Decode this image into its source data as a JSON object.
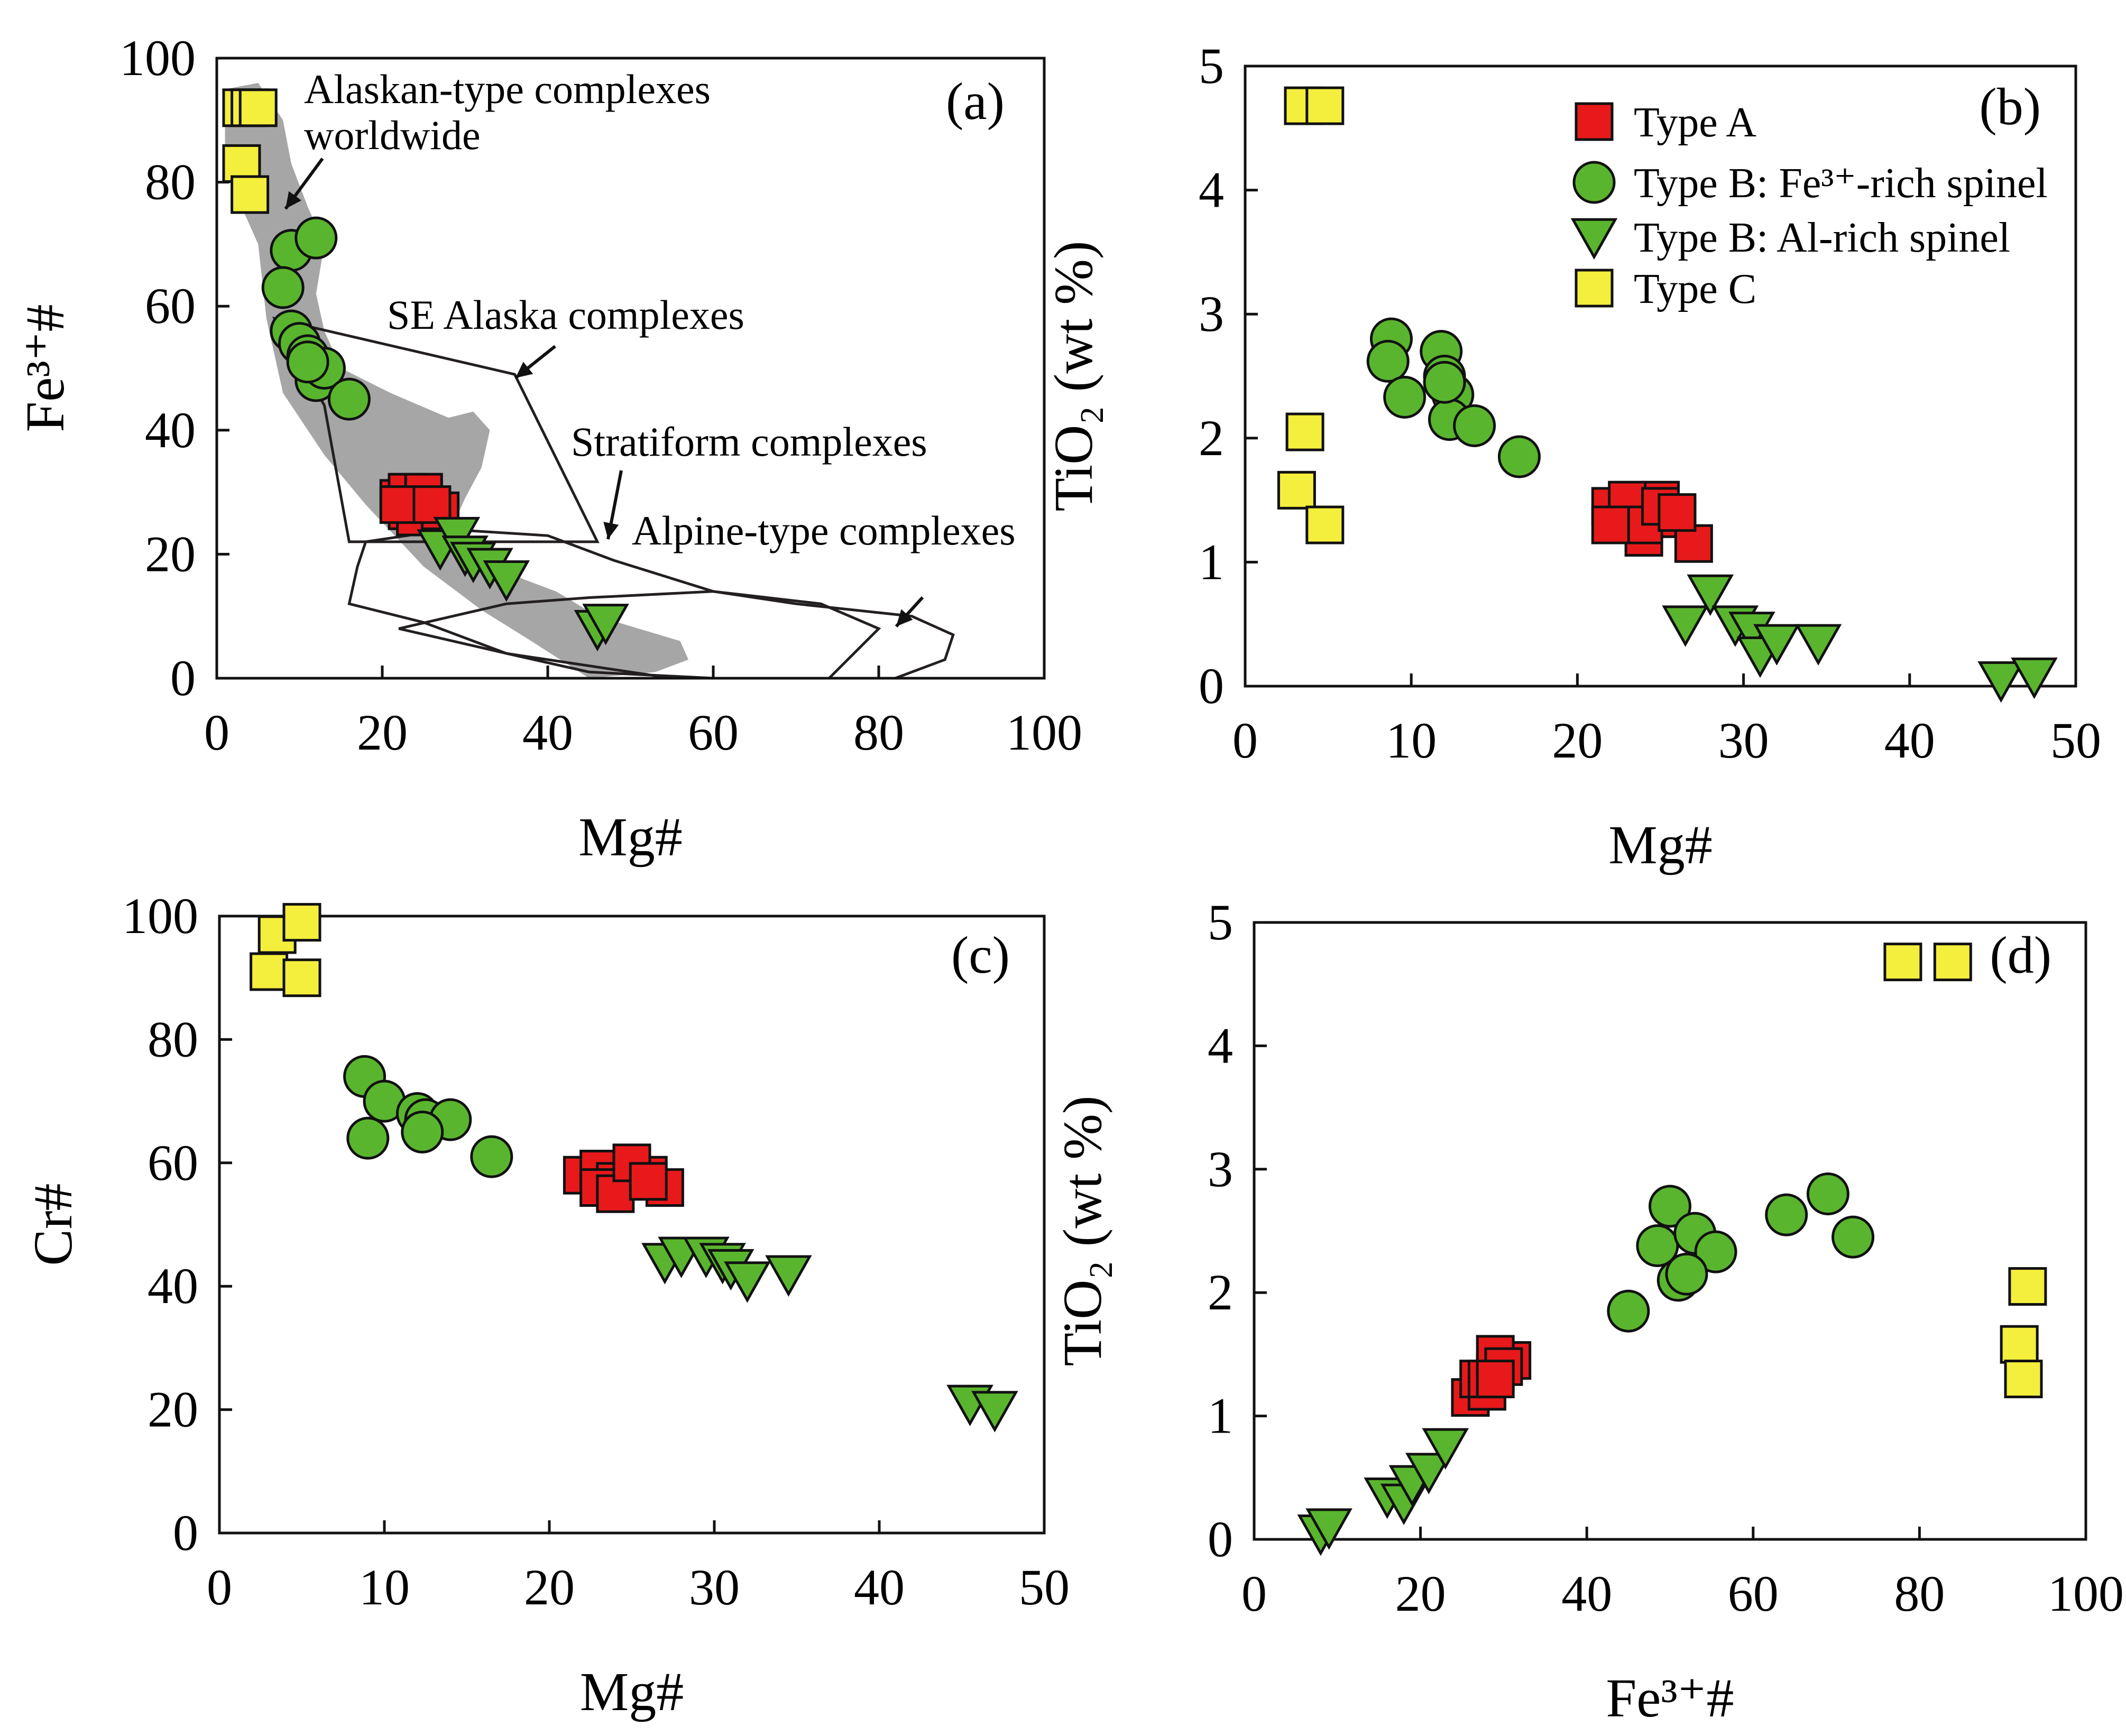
{
  "figure": {
    "description": ""
  },
  "colors": {
    "type_a": "#e8191b",
    "type_b": "#5ab52e",
    "type_c": "#f4ee3c",
    "field_gray": "#a6a6a6",
    "outline": "#231f20"
  },
  "legend": {
    "type_a": "Type A",
    "type_b_fe": "Type B: Fe³⁺-rich spinel",
    "type_b_al": "Type B: Al-rich spinel",
    "type_c": "Type C"
  },
  "chart_data": [
    {
      "id": "a",
      "type": "scatter",
      "panel_label": "(a)",
      "xlabel": "Mg#",
      "ylabel": "Fe³⁺#",
      "xlim": [
        0,
        100
      ],
      "ylim": [
        0,
        100
      ],
      "xticks": [
        0,
        20,
        40,
        60,
        80,
        100
      ],
      "yticks": [
        0,
        20,
        40,
        60,
        80,
        100
      ],
      "annotations": {
        "alaskan_line1": "Alaskan-type complexes",
        "alaskan_line2": "worldwide",
        "se_alaska": "SE Alaska complexes",
        "stratiform": "Stratiform complexes",
        "alpine": "Alpine-type complexes"
      },
      "fields": {
        "alaskan_worldwide": [
          [
            1,
            95
          ],
          [
            5,
            96
          ],
          [
            8,
            90
          ],
          [
            9,
            83
          ],
          [
            11,
            76
          ],
          [
            13,
            70
          ],
          [
            12,
            62
          ],
          [
            13,
            56
          ],
          [
            15,
            50
          ],
          [
            21,
            46
          ],
          [
            28,
            42
          ],
          [
            31,
            43
          ],
          [
            33,
            40
          ],
          [
            32,
            34
          ],
          [
            30,
            29
          ],
          [
            29,
            26
          ],
          [
            31,
            22
          ],
          [
            34,
            18
          ],
          [
            37,
            16
          ],
          [
            41,
            14
          ],
          [
            46,
            10
          ],
          [
            51,
            8
          ],
          [
            56,
            6
          ],
          [
            57,
            3
          ],
          [
            53,
            1
          ],
          [
            45,
            0
          ],
          [
            38,
            6
          ],
          [
            32,
            11
          ],
          [
            25,
            18
          ],
          [
            18,
            28
          ],
          [
            13,
            36
          ],
          [
            8,
            46
          ],
          [
            6,
            58
          ],
          [
            5,
            70
          ],
          [
            3,
            76
          ],
          [
            1,
            82
          ]
        ],
        "se_alaska": [
          [
            7,
            58
          ],
          [
            36,
            49
          ],
          [
            46,
            22
          ],
          [
            16,
            22
          ],
          [
            13,
            44
          ],
          [
            7,
            58
          ]
        ],
        "stratiform": [
          [
            18,
            22
          ],
          [
            28,
            24
          ],
          [
            40,
            23
          ],
          [
            48,
            19
          ],
          [
            60,
            14
          ],
          [
            73,
            12
          ],
          [
            80,
            8
          ],
          [
            74,
            0
          ],
          [
            60,
            0
          ],
          [
            45,
            1
          ],
          [
            35,
            4
          ],
          [
            25,
            9
          ],
          [
            16,
            12
          ],
          [
            17,
            18
          ],
          [
            18,
            22
          ]
        ],
        "alpine": [
          [
            22,
            8
          ],
          [
            35,
            12
          ],
          [
            45,
            13
          ],
          [
            60,
            14
          ],
          [
            70,
            12
          ],
          [
            84,
            10
          ],
          [
            89,
            7
          ],
          [
            88,
            3
          ],
          [
            82,
            0
          ],
          [
            55,
            0
          ],
          [
            35,
            4
          ],
          [
            22,
            8
          ]
        ]
      },
      "series": [
        {
          "name": "Type A",
          "marker": "square",
          "x": [
            22,
            23,
            24,
            25,
            26,
            23,
            25,
            24,
            27,
            22,
            26
          ],
          "y": [
            29,
            30,
            28,
            29,
            27,
            27,
            30,
            26,
            27,
            28,
            28
          ]
        },
        {
          "name": "Type B: Fe³⁺-rich spinel",
          "marker": "circle",
          "x": [
            9,
            12,
            8,
            9,
            10,
            11,
            12,
            13,
            16,
            11
          ],
          "y": [
            69,
            71,
            63,
            56,
            54,
            52,
            48,
            50,
            45,
            51
          ]
        },
        {
          "name": "Type B: Al-rich spinel",
          "marker": "triangle-down",
          "x": [
            27,
            29,
            30,
            31,
            33,
            35,
            46,
            47
          ],
          "y": [
            21,
            23,
            20,
            19,
            18,
            16,
            8,
            9
          ]
        },
        {
          "name": "Type C",
          "marker": "square",
          "x": [
            3,
            4,
            3,
            4,
            5
          ],
          "y": [
            92,
            92,
            83,
            78,
            92
          ]
        }
      ]
    },
    {
      "id": "b",
      "type": "scatter",
      "panel_label": "(b)",
      "xlabel": "Mg#",
      "ylabel": "TiO₂ (wt %)",
      "xlim": [
        0,
        50
      ],
      "ylim": [
        0,
        5
      ],
      "xticks": [
        0,
        10,
        20,
        30,
        40,
        50
      ],
      "yticks": [
        0,
        1,
        2,
        3,
        4,
        5
      ],
      "series": [
        {
          "name": "Type A",
          "marker": "square",
          "x": [
            22,
            23,
            24,
            25,
            26,
            27,
            23,
            24,
            25,
            26,
            22
          ],
          "y": [
            1.45,
            1.35,
            1.2,
            1.5,
            1.35,
            1.15,
            1.5,
            1.3,
            1.45,
            1.4,
            1.3
          ]
        },
        {
          "name": "Type B: Fe³⁺-rich spinel",
          "marker": "circle",
          "x": [
            8.8,
            8.6,
            9.6,
            11.8,
            12.0,
            12.5,
            12.3,
            13.8,
            16.5,
            12.0
          ],
          "y": [
            2.8,
            2.62,
            2.33,
            2.7,
            2.5,
            2.35,
            2.15,
            2.1,
            1.85,
            2.45
          ]
        },
        {
          "name": "Type B: Al-rich spinel",
          "marker": "triangle-down",
          "x": [
            26.5,
            28,
            29.5,
            30.5,
            31,
            32,
            34.5,
            45.5,
            47.5
          ],
          "y": [
            0.5,
            0.75,
            0.5,
            0.45,
            0.25,
            0.35,
            0.35,
            0.05,
            0.08
          ]
        },
        {
          "name": "Type C",
          "marker": "square",
          "x": [
            3.5,
            4.8,
            3.6,
            3.1,
            4.8
          ],
          "y": [
            4.68,
            4.68,
            2.05,
            1.58,
            1.3
          ]
        }
      ]
    },
    {
      "id": "c",
      "type": "scatter",
      "panel_label": "(c)",
      "xlabel": "Mg#",
      "ylabel": "Cr#",
      "xlim": [
        0,
        50
      ],
      "ylim": [
        0,
        100
      ],
      "xticks": [
        0,
        10,
        20,
        30,
        40,
        50
      ],
      "yticks": [
        0,
        20,
        40,
        60,
        80,
        100
      ],
      "series": [
        {
          "name": "Type A",
          "marker": "square",
          "x": [
            22,
            23,
            24,
            25,
            26,
            27,
            23,
            24,
            25,
            26
          ],
          "y": [
            58,
            59,
            57,
            59,
            58,
            56,
            56,
            55,
            60,
            57
          ]
        },
        {
          "name": "Type B: Fe³⁺-rich spinel",
          "marker": "circle",
          "x": [
            8.8,
            9.0,
            10,
            12,
            12.5,
            14,
            16.5,
            12.3
          ],
          "y": [
            74,
            64,
            70,
            68,
            67,
            67,
            61,
            65
          ]
        },
        {
          "name": "Type B: Al-rich spinel",
          "marker": "triangle-down",
          "x": [
            27,
            28,
            29.5,
            30.5,
            31,
            32,
            34.5,
            45.5,
            47
          ],
          "y": [
            44,
            45,
            45,
            44,
            43,
            41,
            42,
            21,
            20
          ]
        },
        {
          "name": "Type C",
          "marker": "square",
          "x": [
            3.5,
            5,
            3,
            5
          ],
          "y": [
            97,
            99,
            91,
            90
          ]
        }
      ]
    },
    {
      "id": "d",
      "type": "scatter",
      "panel_label": "(d)",
      "xlabel": "Fe³⁺#",
      "ylabel": "TiO₂ (wt %)",
      "xlim": [
        0,
        100
      ],
      "ylim": [
        0,
        5
      ],
      "xticks": [
        0,
        20,
        40,
        60,
        80,
        100
      ],
      "yticks": [
        0,
        1,
        2,
        3,
        4,
        5
      ],
      "series": [
        {
          "name": "Type A",
          "marker": "square",
          "x": [
            26,
            27,
            28,
            29,
            30,
            31,
            28,
            29,
            30,
            29
          ],
          "y": [
            1.15,
            1.3,
            1.2,
            1.35,
            1.45,
            1.45,
            1.3,
            1.5,
            1.4,
            1.3
          ]
        },
        {
          "name": "Type B: Fe³⁺-rich spinel",
          "marker": "circle",
          "x": [
            45,
            48.5,
            50,
            51,
            53,
            55.5,
            52,
            64,
            69,
            72
          ],
          "y": [
            1.85,
            2.38,
            2.7,
            2.1,
            2.48,
            2.33,
            2.15,
            2.63,
            2.8,
            2.45
          ]
        },
        {
          "name": "Type B: Al-rich spinel",
          "marker": "triangle-down",
          "x": [
            8,
            9,
            16,
            18,
            19,
            21,
            23
          ],
          "y": [
            0.05,
            0.1,
            0.35,
            0.3,
            0.45,
            0.55,
            0.75
          ]
        },
        {
          "name": "Type C",
          "marker": "square",
          "x": [
            78,
            84,
            93,
            92,
            92.5
          ],
          "y": [
            4.68,
            4.68,
            2.05,
            1.58,
            1.3
          ]
        }
      ]
    }
  ]
}
